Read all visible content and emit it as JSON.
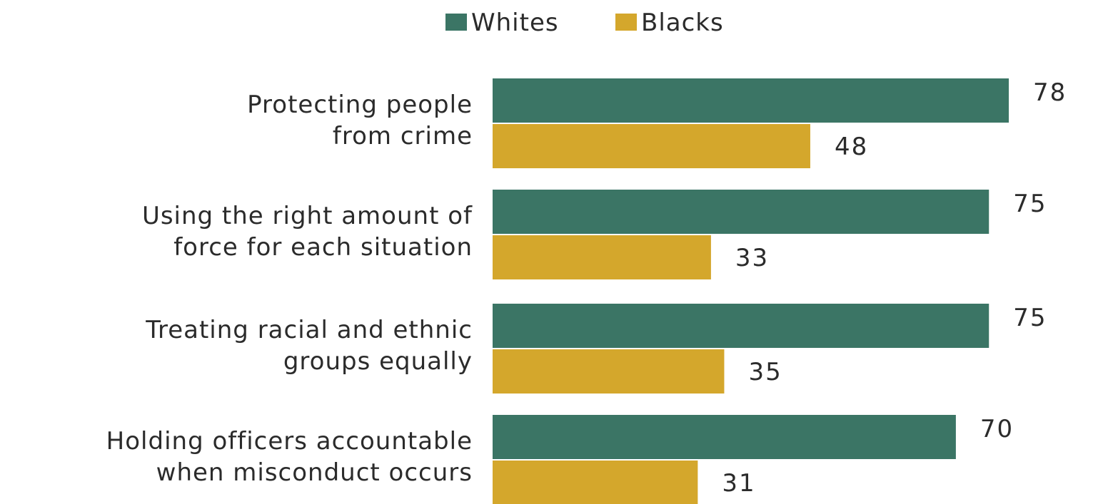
{
  "chart_data": {
    "type": "bar",
    "orientation": "horizontal",
    "title": "",
    "xlabel": "",
    "ylabel": "",
    "xlim": [
      0,
      100
    ],
    "grid": false,
    "legend_position": "top-center",
    "categories": [
      [
        "Protecting people",
        "from crime"
      ],
      [
        "Using the right amount of",
        "force for each  situation"
      ],
      [
        "Treating racial and ethnic",
        "groups equally"
      ],
      [
        "Holding officers accountable",
        "when misconduct occurs"
      ]
    ],
    "series": [
      {
        "name": "Whites",
        "color": "#3b7565",
        "values": [
          78,
          75,
          75,
          70
        ]
      },
      {
        "name": "Blacks",
        "color": "#d4a72c",
        "values": [
          48,
          33,
          35,
          31
        ]
      }
    ]
  }
}
